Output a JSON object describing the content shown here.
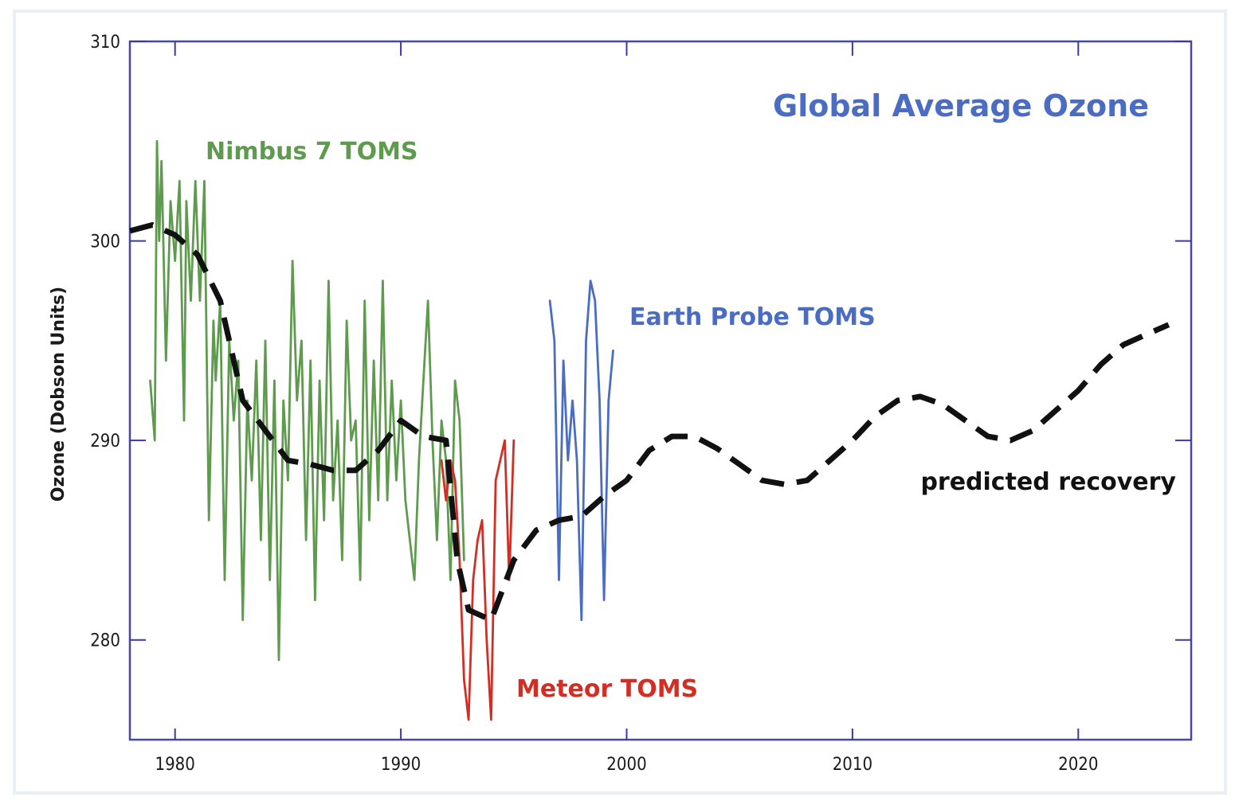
{
  "chart_data": {
    "type": "line",
    "title": "Global Average Ozone",
    "ylabel": "Ozone (Dobson Units)",
    "xlabel": "",
    "xlim": [
      1978,
      2025
    ],
    "ylim": [
      275,
      310
    ],
    "xticks": [
      1980,
      1990,
      2000,
      2010,
      2020
    ],
    "yticks": [
      280,
      290,
      300,
      310
    ],
    "grid": false,
    "legend": "inline labels",
    "series": [
      {
        "name": "Nimbus 7 TOMS",
        "color": "#5f9b4e",
        "x": [
          1978.9,
          1979.1,
          1979.2,
          1979.3,
          1979.4,
          1979.6,
          1979.8,
          1980.0,
          1980.2,
          1980.4,
          1980.5,
          1980.7,
          1980.9,
          1981.1,
          1981.3,
          1981.5,
          1981.7,
          1981.8,
          1982.0,
          1982.2,
          1982.4,
          1982.6,
          1982.8,
          1983.0,
          1983.2,
          1983.4,
          1983.6,
          1983.8,
          1984.0,
          1984.2,
          1984.4,
          1984.6,
          1984.8,
          1985.0,
          1985.2,
          1985.4,
          1985.6,
          1985.8,
          1986.0,
          1986.2,
          1986.4,
          1986.6,
          1986.8,
          1987.0,
          1987.2,
          1987.4,
          1987.6,
          1987.8,
          1988.0,
          1988.2,
          1988.4,
          1988.6,
          1988.8,
          1989.0,
          1989.2,
          1989.4,
          1989.6,
          1989.8,
          1990.0,
          1990.2,
          1990.4,
          1990.6,
          1990.8,
          1991.0,
          1991.2,
          1991.4,
          1991.6,
          1991.8,
          1992.0,
          1992.2,
          1992.4,
          1992.6,
          1992.8
        ],
        "values": [
          293,
          290,
          305,
          300,
          304,
          294,
          302,
          299,
          303,
          291,
          302,
          297,
          303,
          297,
          303,
          286,
          296,
          293,
          297,
          283,
          295,
          291,
          294,
          281,
          292,
          288,
          294,
          285,
          295,
          283,
          293,
          279,
          292,
          288,
          299,
          292,
          295,
          285,
          294,
          282,
          293,
          286,
          298,
          287,
          291,
          284,
          296,
          290,
          291,
          283,
          297,
          286,
          294,
          287,
          298,
          287,
          293,
          288,
          292,
          287,
          285,
          283,
          289,
          293,
          297,
          290,
          285,
          291,
          289,
          283,
          293,
          291,
          284
        ],
        "dashed": false
      },
      {
        "name": "Meteor TOMS",
        "color": "#d42e24",
        "x": [
          1991.8,
          1992.0,
          1992.2,
          1992.4,
          1992.6,
          1992.8,
          1993.0,
          1993.2,
          1993.4,
          1993.6,
          1993.8,
          1994.0,
          1994.2,
          1994.4,
          1994.6,
          1994.8,
          1995.0
        ],
        "values": [
          289,
          287,
          289,
          288,
          284,
          278,
          276,
          283,
          285,
          286,
          280,
          276,
          288,
          289,
          290,
          283,
          290
        ],
        "dashed": false
      },
      {
        "name": "Earth Probe TOMS",
        "color": "#4a6cc3",
        "x": [
          1996.6,
          1996.8,
          1997.0,
          1997.2,
          1997.4,
          1997.6,
          1997.8,
          1998.0,
          1998.2,
          1998.4,
          1998.6,
          1998.8,
          1999.0,
          1999.2,
          1999.4
        ],
        "values": [
          297,
          295,
          283,
          294,
          289,
          292,
          289,
          281,
          295,
          298,
          297,
          292,
          282,
          292,
          294.5
        ],
        "dashed": false
      },
      {
        "name": "predicted recovery",
        "color": "#111111",
        "x": [
          1978,
          1979,
          1980,
          1981,
          1982,
          1983,
          1984,
          1985,
          1986,
          1987,
          1988,
          1989,
          1990,
          1991,
          1992,
          1992.5,
          1993,
          1994,
          1995,
          1996,
          1997,
          1998,
          1999,
          2000,
          2001,
          2002,
          2003,
          2004,
          2005,
          2006,
          2007,
          2008,
          2009,
          2010,
          2011,
          2012,
          2013,
          2014,
          2015,
          2016,
          2017,
          2018,
          2019,
          2020,
          2021,
          2022,
          2023,
          2024
        ],
        "values": [
          300.5,
          300.8,
          300.3,
          299.3,
          297,
          292,
          290.5,
          289,
          288.8,
          288.5,
          288.5,
          289.5,
          291,
          290.2,
          290,
          284,
          281.5,
          281,
          284,
          285.5,
          286,
          286.2,
          287.2,
          288,
          289.5,
          290.2,
          290.2,
          289.6,
          288.8,
          288,
          287.8,
          288,
          289,
          290,
          291.2,
          292,
          292.2,
          291.8,
          291,
          290.2,
          290,
          290.5,
          291.5,
          292.5,
          293.8,
          294.8,
          295.3,
          295.8
        ],
        "dashed": true
      }
    ]
  },
  "labels": {
    "title": "Global Average Ozone",
    "nimbus": "Nimbus 7 TOMS",
    "earthprobe": "Earth Probe TOMS",
    "meteor": "Meteor TOMS",
    "predicted": "predicted recovery",
    "ylabel": "Ozone (Dobson Units)"
  },
  "colors": {
    "title": "#4a6cc3",
    "nimbus": "#5f9b4e",
    "earthprobe": "#4a6cc3",
    "meteor": "#d42e24",
    "predicted": "#111111",
    "axis": "#3a3aa0"
  }
}
